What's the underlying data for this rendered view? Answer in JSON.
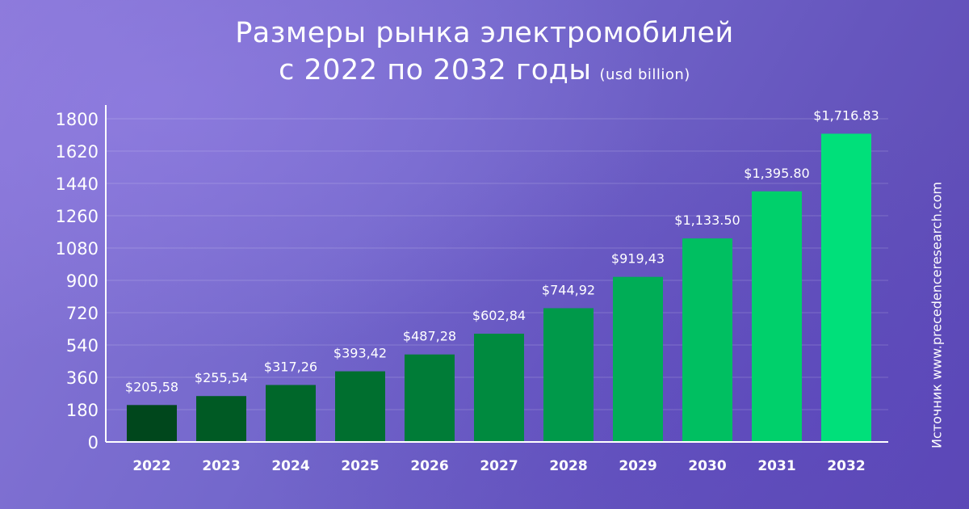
{
  "title_line1": "Размеры рынка электромобилей",
  "title_line2": "с 2022 по 2032 годы",
  "unit_label": "(usd billion)",
  "source_text": "Источник www.precedenceresearch.com",
  "colors": {
    "axis": "#ffffff",
    "bars": [
      "#00471c",
      "#005a24",
      "#00672a",
      "#006f2f",
      "#007c37",
      "#008a3f",
      "#00994a",
      "#00ad56",
      "#00bf61",
      "#00d06b",
      "#00e07a"
    ]
  },
  "chart_data": {
    "type": "bar",
    "title": "Размеры рынка электромобилей с 2022 по 2032 годы",
    "ylabel": "(usd billion)",
    "categories": [
      "2022",
      "2023",
      "2024",
      "2025",
      "2026",
      "2027",
      "2028",
      "2029",
      "2030",
      "2031",
      "2032"
    ],
    "values": [
      205.58,
      255.54,
      317.26,
      393.42,
      487.28,
      602.84,
      744.92,
      919.43,
      1133.5,
      1395.8,
      1716.83
    ],
    "data_labels": [
      "$205,58",
      "$255,54",
      "$317,26",
      "$393,42",
      "$487,28",
      "$602,84",
      "$744,92",
      "$919,43",
      "$1,133.50",
      "$1,395.80",
      "$1,716.83"
    ],
    "yticks": [
      0,
      180,
      360,
      540,
      720,
      900,
      1080,
      1260,
      1440,
      1620,
      1800
    ],
    "ylim": [
      0,
      1800
    ],
    "grid": true,
    "legend": "none"
  }
}
